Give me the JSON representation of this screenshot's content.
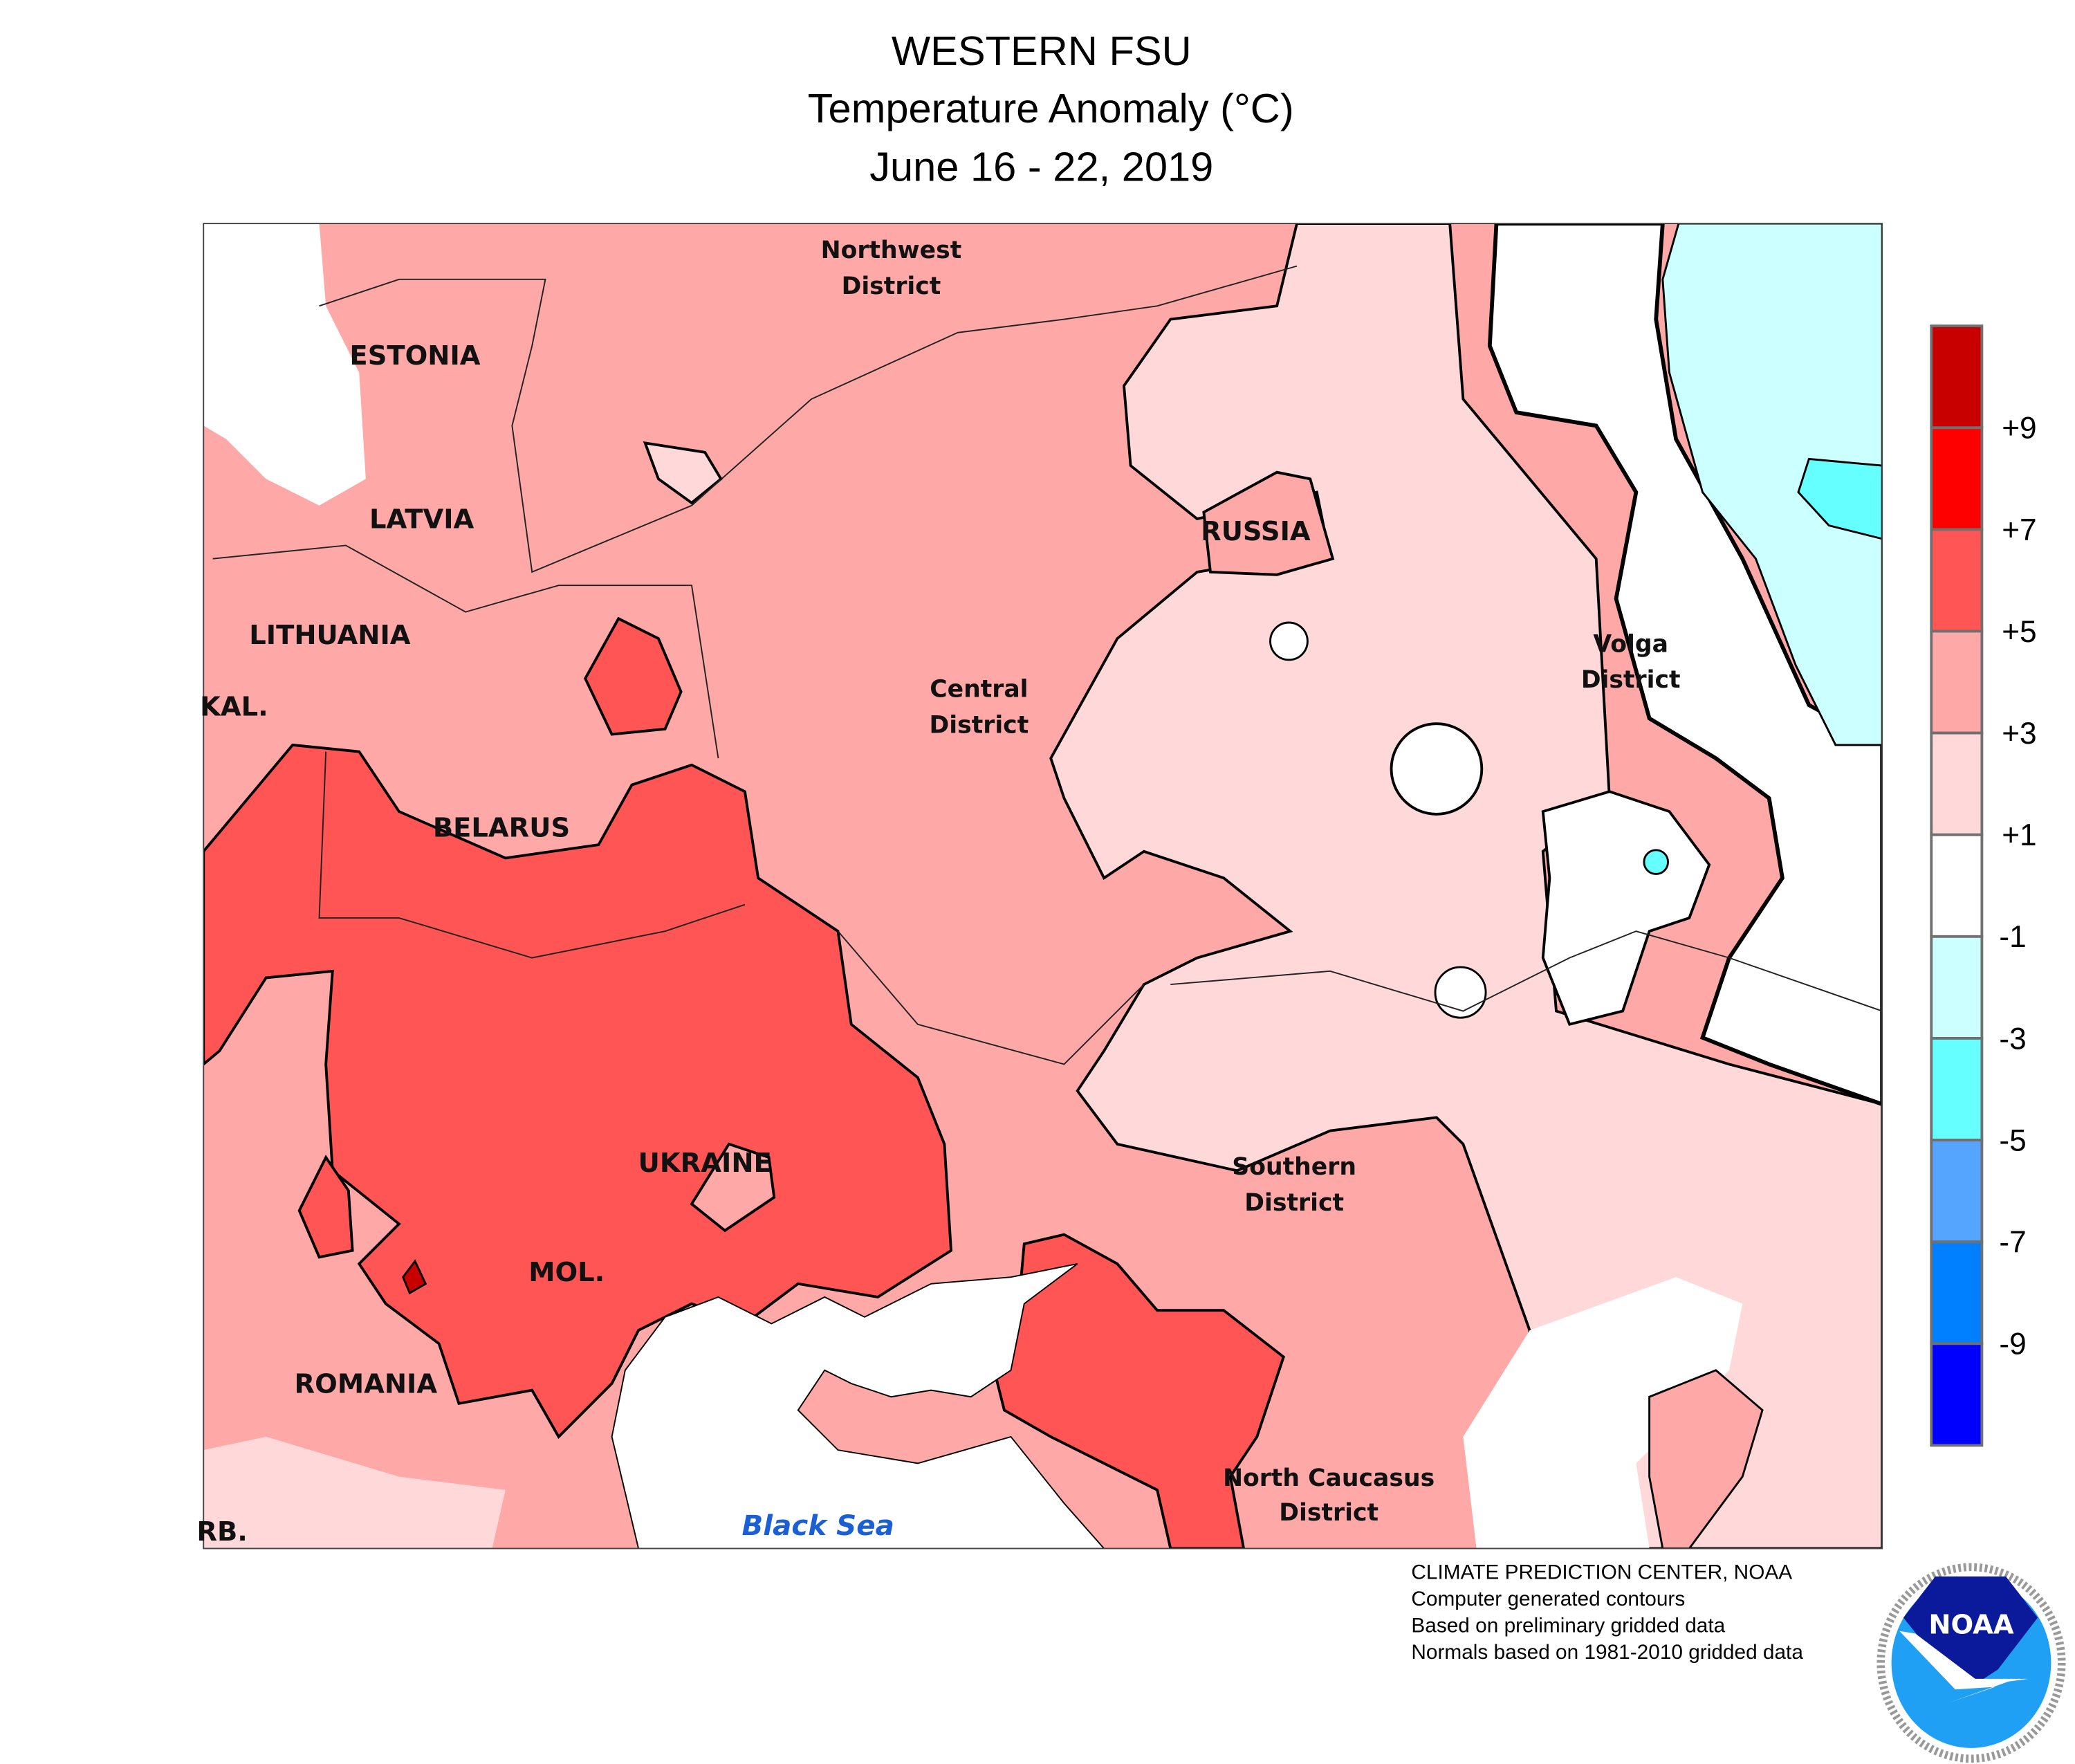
{
  "title": {
    "line1": "WESTERN FSU",
    "line2": "Temperature Anomaly (°C)",
    "line3": "June 16 - 22, 2019"
  },
  "map_labels": {
    "northwest_district": [
      "Northwest",
      "District"
    ],
    "estonia": "ESTONIA",
    "latvia": "LATVIA",
    "lithuania": "LITHUANIA",
    "kaliningrad": "KAL.",
    "belarus": "BELARUS",
    "russia": "RUSSIA",
    "central_district": [
      "Central",
      "District"
    ],
    "volga_district": [
      "Volga",
      "District"
    ],
    "ukraine": "UKRAINE",
    "moldova": "MOL.",
    "romania": "ROMANIA",
    "serbia": "RB.",
    "southern_district": [
      "Southern",
      "District"
    ],
    "north_caucasus_district": [
      "North Caucasus",
      "District"
    ],
    "black_sea": "Black Sea"
  },
  "legend": {
    "colors": [
      "#c80000",
      "#ff0000",
      "#ff5555",
      "#ffa8a8",
      "#ffd9d9",
      "#ffffff",
      "#ccffff",
      "#66ffff",
      "#55a5ff",
      "#0080ff",
      "#0000ff"
    ],
    "labels": [
      "+9",
      "+7",
      "+5",
      "+3",
      "+1",
      "-1",
      "-3",
      "-5",
      "-7",
      "-9"
    ]
  },
  "credits": {
    "line1": "CLIMATE PREDICTION CENTER, NOAA",
    "line2": "Computer generated contours",
    "line3": "Based on preliminary gridded data",
    "line4": "Normals based on 1981-2010 gridded data"
  },
  "logo": {
    "text": "NOAA",
    "ring_text": "NATIONAL OCEANIC AND ATMOSPHERIC ADMINISTRATION · U.S. DEPARTMENT OF COMMERCE"
  }
}
